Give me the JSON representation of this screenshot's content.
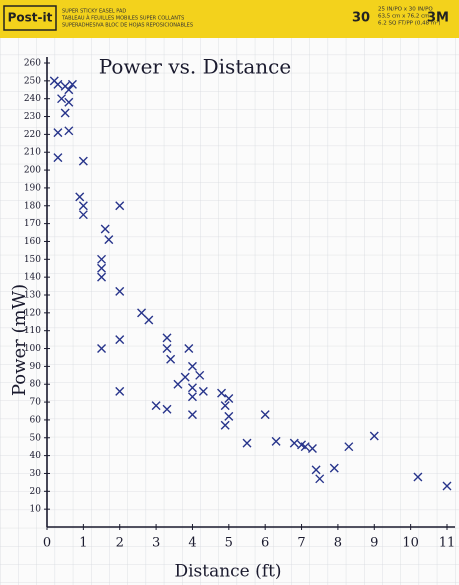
{
  "header": {
    "brand": "Post-it",
    "line1": "SUPER STICKY EASEL PAD",
    "line2": "TABLEAU À FEUILLES MOBILES SUPER COLLANTS",
    "line3": "SUPERADHESIVA BLOC DE HOJAS REPOSICIONABLES",
    "count": "30",
    "size1": "25 IN/PO x 30 IN/PO",
    "size2": "63,5 cm x 76,2 cm",
    "size3": "6.2 SQ FT/PP (0,48 m²)",
    "maker": "3M"
  },
  "chart_data": {
    "type": "scatter",
    "title": "Power vs. Distance",
    "x_label": "Distance (ft)",
    "y_label": "Power (mW)",
    "color": "#27348b",
    "xlim": [
      0,
      11
    ],
    "ylim": [
      0,
      260
    ],
    "xticks": [
      0,
      1,
      2,
      3,
      4,
      5,
      6,
      7,
      8,
      9,
      10,
      11
    ],
    "yticks": [
      10,
      20,
      30,
      40,
      50,
      60,
      70,
      80,
      90,
      100,
      110,
      120,
      130,
      140,
      150,
      160,
      170,
      180,
      190,
      200,
      210,
      220,
      230,
      240,
      250,
      260
    ],
    "x": [
      0.2,
      0.3,
      0.5,
      0.7,
      0.6,
      0.4,
      0.6,
      0.5,
      0.6,
      0.3,
      0.3,
      1.0,
      0.9,
      1.0,
      1.0,
      2.0,
      1.6,
      1.7,
      1.5,
      1.5,
      1.5,
      2.0,
      1.5,
      2.0,
      2.6,
      2.8,
      2.0,
      3.3,
      3.3,
      3.4,
      3.9,
      3.8,
      3.6,
      4.0,
      4.2,
      4.0,
      4.0,
      4.3,
      3.0,
      3.3,
      4.0,
      4.8,
      5.0,
      4.9,
      5.0,
      4.9,
      5.5,
      6.0,
      6.3,
      6.8,
      7.0,
      7.1,
      7.3,
      7.5,
      7.4,
      7.9,
      8.3,
      9.0,
      10.2,
      11.0
    ],
    "values": [
      250,
      248,
      247,
      248,
      245,
      240,
      238,
      232,
      222,
      221,
      207,
      205,
      185,
      180,
      175,
      180,
      167,
      161,
      150,
      145,
      140,
      132,
      100,
      105,
      120,
      116,
      76,
      106,
      100,
      94,
      100,
      84,
      80,
      90,
      85,
      78,
      73,
      76,
      68,
      66,
      63,
      75,
      72,
      68,
      62,
      57,
      47,
      63,
      48,
      47,
      46,
      45,
      44,
      27,
      32,
      33,
      45,
      51,
      28,
      23
    ]
  }
}
